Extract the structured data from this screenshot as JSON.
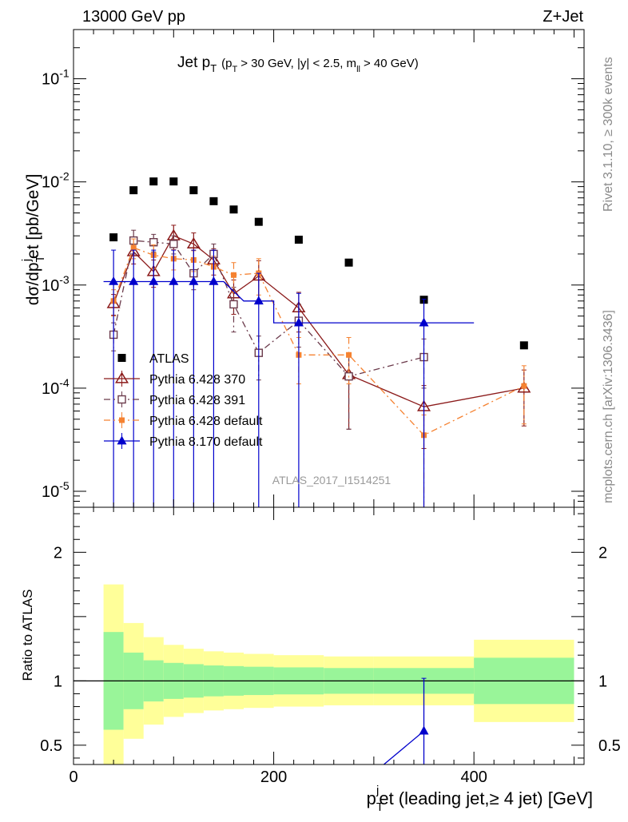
{
  "header": {
    "left": "13000 GeV pp",
    "right": "Z+Jet"
  },
  "side_text": {
    "top": "Rivet 3.1.10, ≥ 300k events",
    "bottom": "mcplots.cern.ch [arXiv:1306.3436]"
  },
  "chart_data": [
    {
      "type": "scatter",
      "title": "Jet p",
      "title_sub": "T",
      "title_cuts": "(p",
      "title_cuts_sub": "T",
      "title_cuts_rest": "> 30 GeV, |y| < 2.5, m",
      "title_cuts_sub2": "ll",
      "title_cuts_end": "> 40 GeV)",
      "watermark": "ATLAS_2017_I1514251",
      "ylabel": "dσ/dp_T^j et [pb/GeV]",
      "ylabel_parts": {
        "a": "dσ/dp",
        "sub": "T",
        "sup": "j",
        "b": "et [pb/GeV]"
      },
      "yscale": "log",
      "xlim": [
        0,
        510
      ],
      "ylim": [
        7e-06,
        0.3
      ],
      "ytick_labels": [
        "10",
        "10",
        "10",
        "10",
        "10"
      ],
      "ytick_exponents": [
        "-5",
        "-4",
        "-3",
        "-2",
        "-1"
      ],
      "ytick_values": [
        1e-05,
        0.0001,
        0.001,
        0.01,
        0.1
      ],
      "legend_position": "middle-left",
      "series": [
        {
          "name": "ATLAS",
          "color": "#000000",
          "marker": "square",
          "x": [
            40,
            60,
            80,
            100,
            120,
            140,
            160,
            185,
            225,
            275,
            350,
            450
          ],
          "y": [
            0.0029,
            0.0083,
            0.0101,
            0.0101,
            0.0083,
            0.0065,
            0.0054,
            0.0041,
            0.00275,
            0.00165,
            0.00072,
            0.00026
          ]
        },
        {
          "name": "Pythia 6.428 370",
          "color": "#8b1a1a",
          "marker": "open-triangle",
          "line": "solid",
          "x": [
            40,
            60,
            80,
            100,
            120,
            140,
            160,
            185,
            225,
            275,
            350,
            450
          ],
          "y": [
            0.00066,
            0.0021,
            0.00135,
            0.003,
            0.0025,
            0.00175,
            0.00082,
            0.00122,
            0.0006,
            0.000135,
            6.6e-05,
            0.0001
          ],
          "err_up": [
            0.00015,
            0.0005,
            0.0004,
            0.0008,
            0.0007,
            0.0005,
            0.0003,
            0.0005,
            0.00025,
            8e-05,
            4e-05,
            5e-05
          ],
          "err_down": [
            0.00015,
            0.0005,
            0.0004,
            0.0008,
            0.0007,
            0.0005,
            0.0003,
            0.0005,
            0.00025,
            9.5e-05,
            4e-05,
            5.7e-05
          ]
        },
        {
          "name": "Pythia 6.428 391",
          "color": "#6b3a4b",
          "marker": "open-square",
          "line": "dashdot",
          "x": [
            40,
            60,
            80,
            100,
            120,
            140,
            160,
            185,
            225,
            275,
            350
          ],
          "y": [
            0.00033,
            0.0027,
            0.0026,
            0.0025,
            0.0013,
            0.002,
            0.00065,
            0.00022,
            0.00045,
            0.00013,
            0.0002
          ],
          "err_up": [
            0.0001,
            0.0007,
            0.0005,
            0.0005,
            0.0004,
            0.0005,
            0.0003,
            0.0001,
            0.0002,
            8e-05,
            0.0001
          ],
          "err_down": [
            0.0001,
            0.0007,
            0.0005,
            0.0005,
            0.0004,
            0.0005,
            0.0003,
            0.0001,
            0.0002,
            9e-05,
            0.0001
          ]
        },
        {
          "name": "Pythia 6.428 default",
          "color": "#f58231",
          "marker": "filled-square",
          "line": "dashdot",
          "x": [
            40,
            60,
            80,
            100,
            120,
            140,
            160,
            185,
            225,
            275,
            350,
            450
          ],
          "y": [
            0.0007,
            0.0023,
            0.00195,
            0.0018,
            0.00175,
            0.0015,
            0.00125,
            0.0013,
            0.00021,
            0.00021,
            3.5e-05,
            0.000105
          ],
          "err_up": [
            0.0002,
            0.0005,
            0.0005,
            0.0004,
            0.0004,
            0.0004,
            0.0004,
            0.0005,
            0.0001,
            0.0001,
            2e-05,
            6e-05
          ],
          "err_down": [
            0.0002,
            0.0005,
            0.0005,
            0.0004,
            0.0004,
            0.0004,
            0.0004,
            0.0005,
            0.0001,
            0.0001,
            2.8e-05,
            6e-05
          ]
        },
        {
          "name": "Pythia 8.170 default",
          "color": "#0000cc",
          "marker": "filled-triangle",
          "line": "solid",
          "x": [
            40,
            60,
            80,
            100,
            120,
            140,
            185,
            225,
            350
          ],
          "x_edges": [
            [
              30,
              50
            ],
            [
              50,
              70
            ],
            [
              70,
              90
            ],
            [
              90,
              110
            ],
            [
              110,
              130
            ],
            [
              130,
              150
            ],
            [
              170,
              200
            ],
            [
              200,
              250
            ],
            [
              300,
              400
            ]
          ],
          "y": [
            0.00108,
            0.00108,
            0.00108,
            0.00108,
            0.00108,
            0.00108,
            0.0007,
            0.00043,
            0.00043
          ],
          "err_up": [
            0.0011,
            0.0011,
            0.0011,
            0.0011,
            0.0011,
            0.0011,
            0.0006,
            0.0004,
            0.0003
          ],
          "err_down": [
            0.0011,
            0.0011,
            0.0011,
            0.0011,
            0.0011,
            0.0011,
            0.0007,
            0.00043,
            0.00043
          ]
        }
      ]
    },
    {
      "type": "scatter",
      "ylabel": "Ratio to ATLAS",
      "xlabel_parts": {
        "a": "p",
        "sub": "T",
        "sup": "j",
        "b": "et (leading jet,≥ 4 jet) [GeV]"
      },
      "xlim": [
        0,
        510
      ],
      "ylim": [
        0.35,
        2.35
      ],
      "xtick_labels": [
        "0",
        "200",
        "400"
      ],
      "xtick_values": [
        0,
        200,
        400
      ],
      "ytick_labels": [
        "0.5",
        "1",
        "2"
      ],
      "ytick_values": [
        0.5,
        1,
        2
      ],
      "bands": {
        "edges": [
          30,
          50,
          70,
          90,
          110,
          130,
          150,
          170,
          200,
          250,
          300,
          400,
          500
        ],
        "inner_lo": [
          0.62,
          0.78,
          0.84,
          0.86,
          0.87,
          0.88,
          0.885,
          0.89,
          0.895,
          0.9,
          0.9,
          0.82
        ],
        "inner_hi": [
          1.38,
          1.22,
          1.16,
          1.14,
          1.13,
          1.12,
          1.115,
          1.11,
          1.105,
          1.1,
          1.1,
          1.18
        ],
        "outer_lo": [
          0.25,
          0.55,
          0.66,
          0.72,
          0.75,
          0.77,
          0.78,
          0.79,
          0.8,
          0.81,
          0.81,
          0.68
        ],
        "outer_hi": [
          1.75,
          1.45,
          1.34,
          1.28,
          1.25,
          1.23,
          1.22,
          1.21,
          1.2,
          1.19,
          1.19,
          1.32
        ],
        "inner_color": "#99f599",
        "outer_color": "#ffff99"
      },
      "series": [
        {
          "name": "Pythia 8.170 default",
          "color": "#0000cc",
          "marker": "filled-triangle",
          "x": [
            350
          ],
          "y": [
            0.61
          ],
          "err_up": [
            0.41
          ],
          "err_down": [
            0.6
          ],
          "line_from": [
            310,
            0.34
          ]
        }
      ]
    }
  ]
}
